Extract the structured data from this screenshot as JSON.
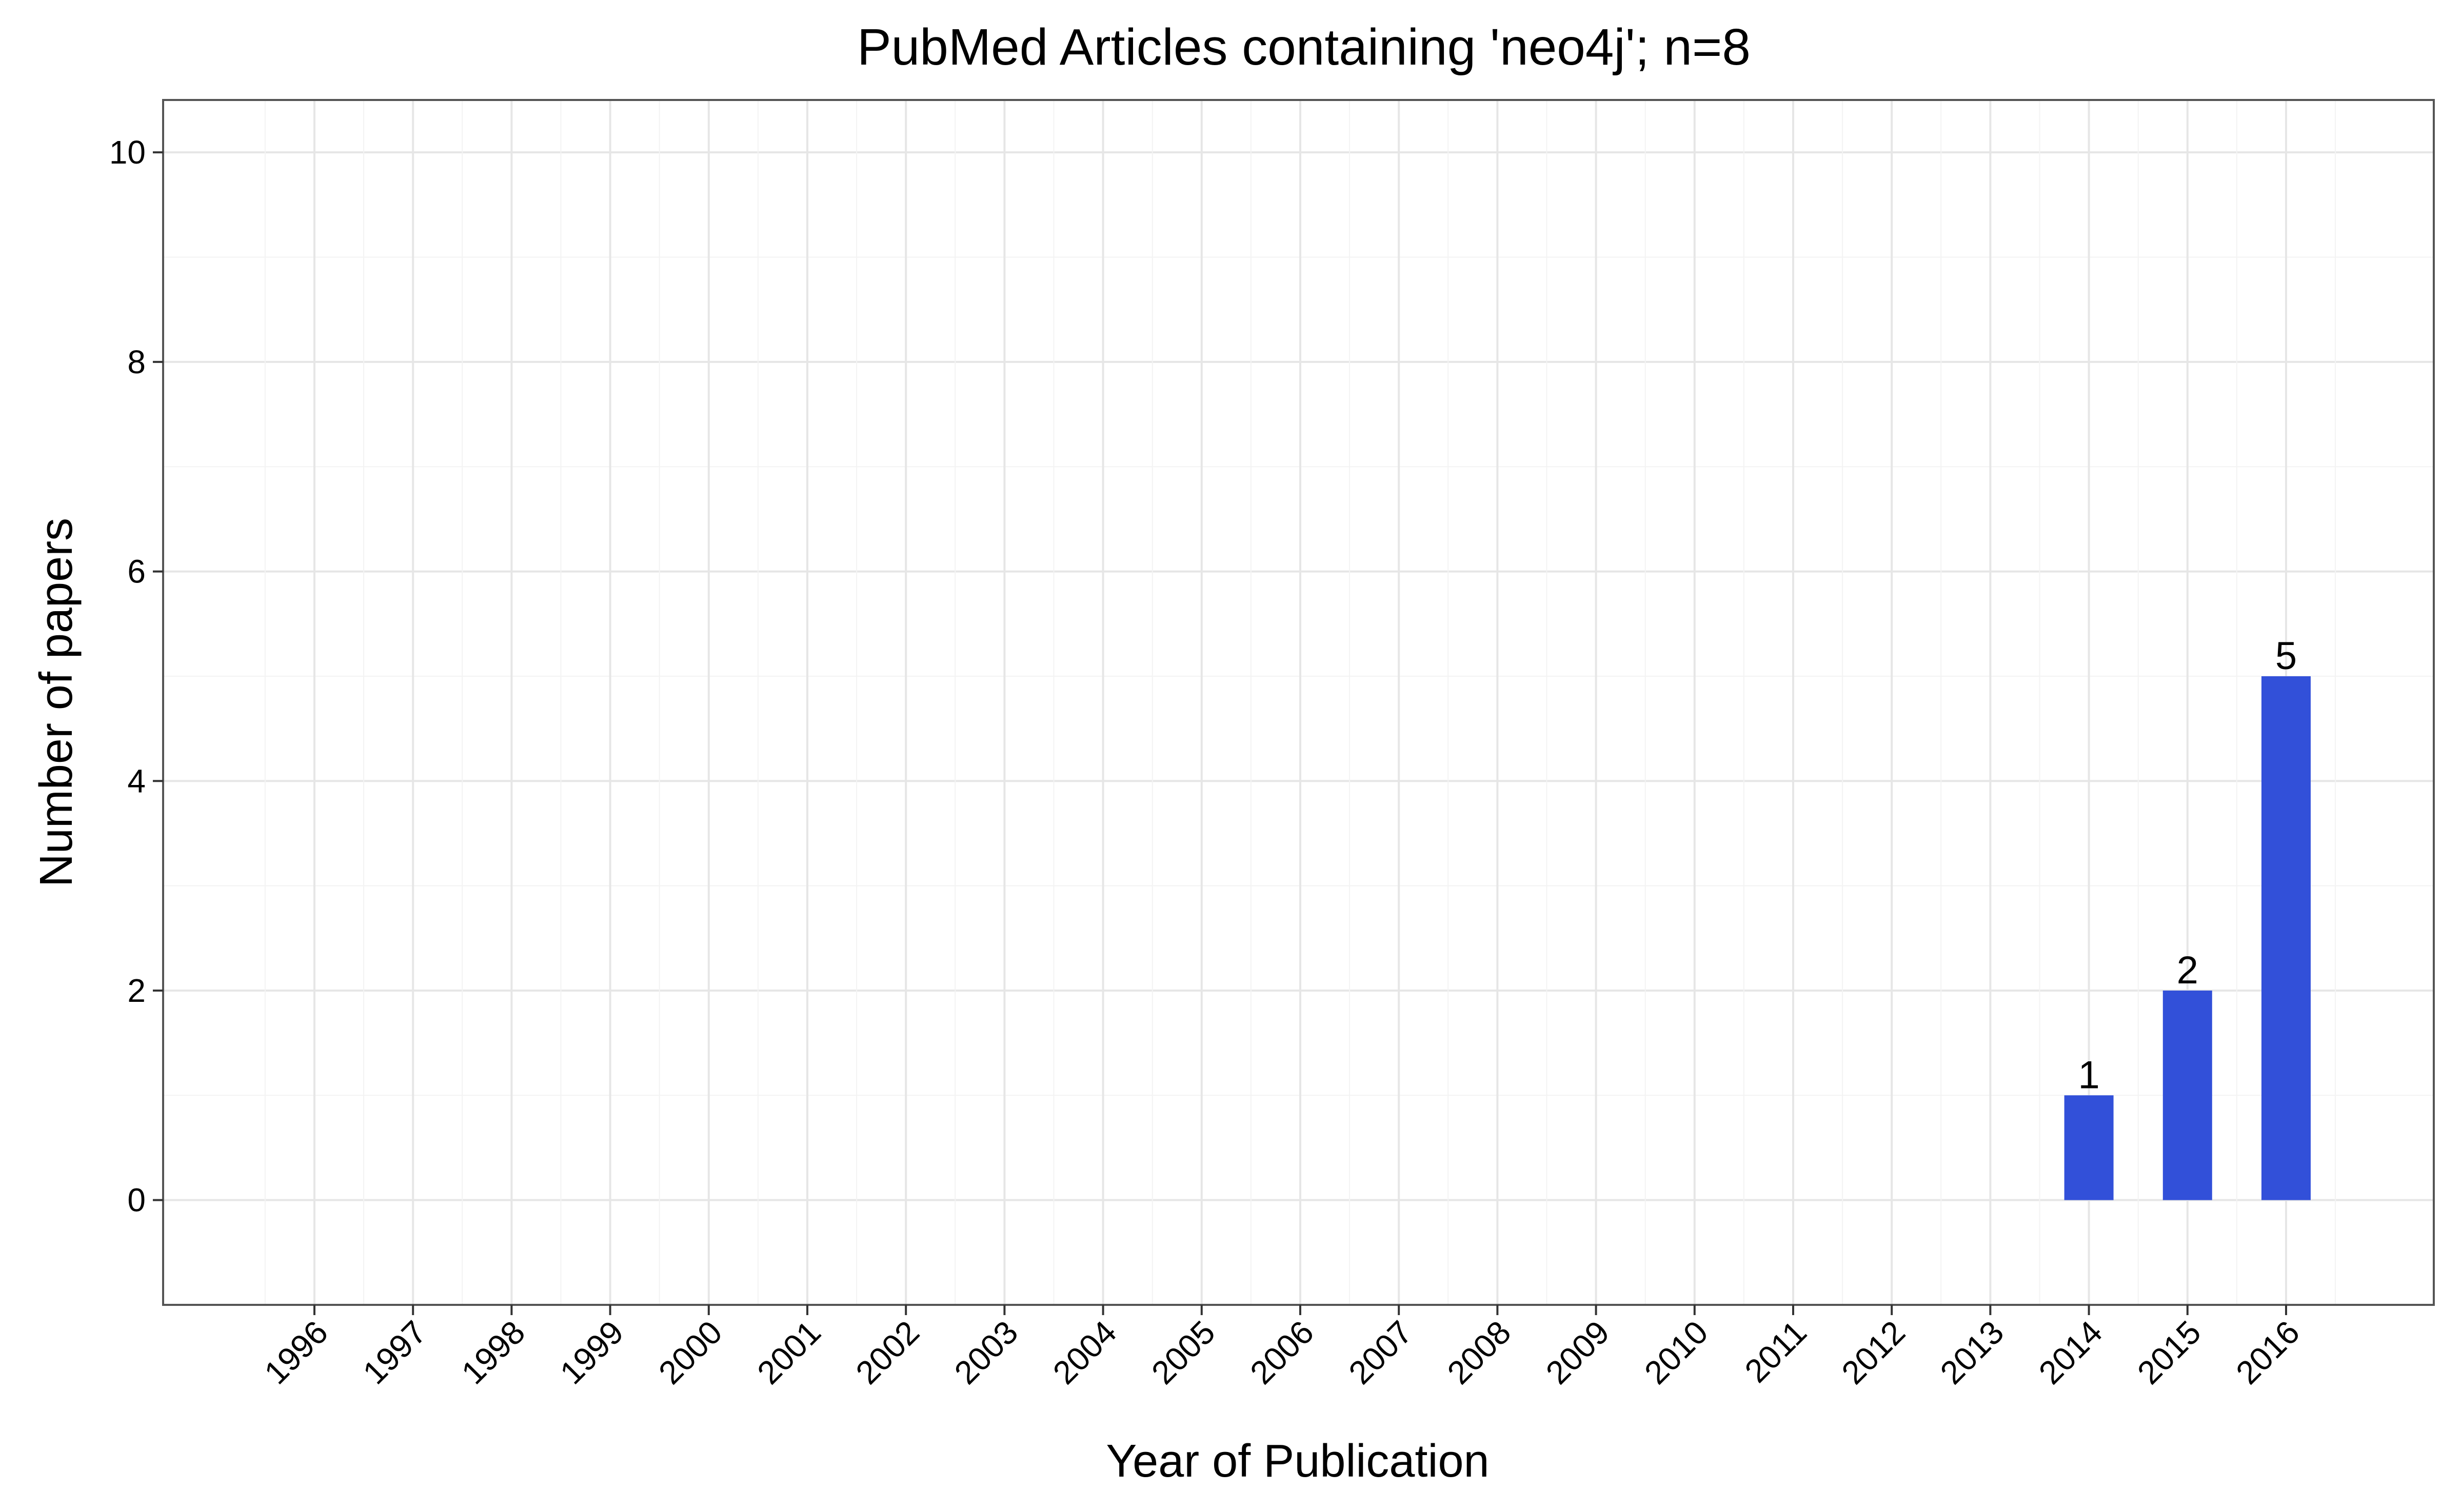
{
  "chart_data": {
    "type": "bar",
    "title": "PubMed Articles containing 'neo4j'; n=8",
    "xlabel": "Year of Publication",
    "ylabel": "Number of papers",
    "categories": [
      "1996",
      "1997",
      "1998",
      "1999",
      "2000",
      "2001",
      "2002",
      "2003",
      "2004",
      "2005",
      "2006",
      "2007",
      "2008",
      "2009",
      "2010",
      "2011",
      "2012",
      "2013",
      "2014",
      "2015",
      "2016"
    ],
    "values": [
      0,
      0,
      0,
      0,
      0,
      0,
      0,
      0,
      0,
      0,
      0,
      0,
      0,
      0,
      0,
      0,
      0,
      0,
      1,
      2,
      5
    ],
    "data_labels": [
      "",
      "",
      "",
      "",
      "",
      "",
      "",
      "",
      "",
      "",
      "",
      "",
      "",
      "",
      "",
      "",
      "",
      "",
      "1",
      "2",
      "5"
    ],
    "yticks": [
      0,
      2,
      4,
      6,
      8,
      10
    ],
    "ylim": [
      -1,
      10.5
    ],
    "grid": true,
    "legend": "none",
    "colors": {
      "bar": "#3250D9",
      "grid_major": "#E6E6E6",
      "grid_minor": "#F3F3F3",
      "panel_border": "#555555"
    }
  }
}
